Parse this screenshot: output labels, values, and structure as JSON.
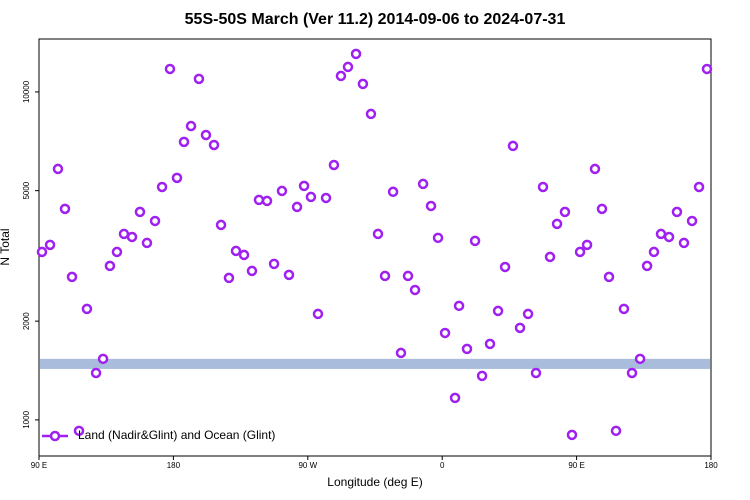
{
  "chart_data": {
    "type": "scatter",
    "title": "55S-50S March (Ver 11.2)   2014-09-06 to 2024-07-31",
    "x_label": "Longitude (deg E)",
    "y_label": "N Total",
    "log_y": true,
    "legend_position": "lower left",
    "xlim": [
      90,
      540
    ],
    "ylim": [
      776,
      14500
    ],
    "xticks": [
      {
        "value": 90,
        "label": "90 E"
      },
      {
        "value": 180,
        "label": "180"
      },
      {
        "value": 270,
        "label": "90 W"
      },
      {
        "value": 360,
        "label": "0"
      },
      {
        "value": 450,
        "label": "90 E"
      },
      {
        "value": 540,
        "label": "180"
      }
    ],
    "yticks": [
      1000,
      2000,
      5000,
      10000
    ],
    "band": {
      "range": [
        1430,
        1535
      ],
      "color": "#a9bcdc"
    },
    "series": [
      {
        "name": "Land (Nadir&Glint) and Ocean (Glint)",
        "color": "#a020f0",
        "x": [
          92,
          97.4,
          102.7,
          107.4,
          112.1,
          116.8,
          122.1,
          128.2,
          132.9,
          137.5,
          142.2,
          146.9,
          152.3,
          157.6,
          162.3,
          167.7,
          172.4,
          177.7,
          182.4,
          187.1,
          191.8,
          197.1,
          201.8,
          207.2,
          211.9,
          217.2,
          221.9,
          227.3,
          232.6,
          237.3,
          242.7,
          247.4,
          252.7,
          257.4,
          262.8,
          267.5,
          272.1,
          276.8,
          282.2,
          287.5,
          292.2,
          296.9,
          302.3,
          306.9,
          312.3,
          317,
          321.7,
          327.1,
          332.4,
          337.1,
          341.8,
          347.2,
          352.5,
          357.2,
          361.9,
          368.6,
          371.3,
          376.6,
          382,
          386.7,
          392,
          397.4,
          402.1,
          407.4,
          412.1,
          417.5,
          422.8,
          427.5,
          432.2,
          436.9,
          442.2,
          446.9,
          452.3,
          457,
          462.3,
          467,
          471.7,
          476.4,
          481.7,
          487.1,
          492.5,
          497.2,
          501.8,
          506.5,
          511.9,
          517.2,
          521.9,
          527.3,
          532,
          537.3
        ],
        "values": [
          3252,
          3417,
          5824,
          4400,
          2729,
          926,
          2180,
          1390,
          1535,
          2948,
          3252,
          3690,
          3612,
          4307,
          3464,
          4042,
          5130,
          11750,
          5470,
          7043,
          7870,
          10960,
          7390,
          6890,
          3931,
          2710,
          3275,
          3184,
          2846,
          4685,
          4652,
          2990,
          4990,
          2768,
          4460,
          5170,
          4785,
          2104,
          4750,
          5987,
          11190,
          11920,
          13060,
          10580,
          8570,
          3690,
          2748,
          4960,
          1600,
          2748,
          2490,
          5242,
          4490,
          3590,
          1841,
          1167,
          2227,
          1646,
          3514,
          1362,
          1705,
          2149,
          2926,
          6845,
          1908,
          2104,
          1390,
          5130,
          3140,
          3960,
          4307,
          900,
          3252,
          3417,
          5824,
          4400,
          2729,
          926,
          2180,
          1390,
          1535,
          2948,
          3252,
          3690,
          3612,
          4307,
          3464,
          4042,
          5130,
          11750
        ]
      }
    ]
  }
}
